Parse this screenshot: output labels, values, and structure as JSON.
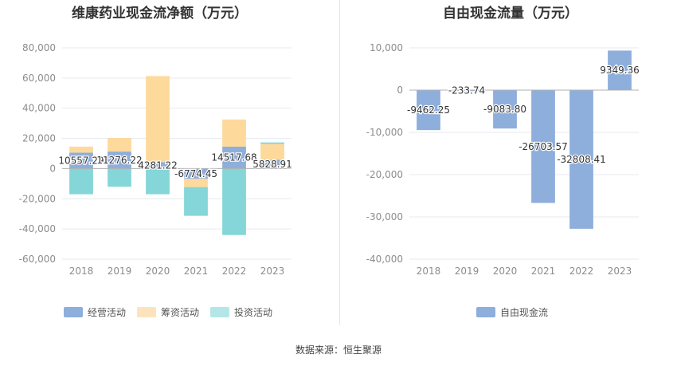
{
  "colors": {
    "operating": "#8eaedc",
    "financing": "#fdd99b",
    "investing": "#84d6d8",
    "fcf": "#8eaedc",
    "grid": "#e6e9ef",
    "tick_text": "#8c8c8c",
    "label_text": "#333333"
  },
  "left_chart": {
    "title": "维康药业现金流净额（万元）"
  },
  "right_chart": {
    "title": "自由现金流量（万元）"
  },
  "legend_left": [
    {
      "label": "经营活动",
      "color": "#8eaedc"
    },
    {
      "label": "筹资活动",
      "color": "#fde3bd"
    },
    {
      "label": "投资活动",
      "color": "#b4e6e7"
    }
  ],
  "legend_right": [
    {
      "label": "自由现金流",
      "color": "#8eaedc"
    }
  ],
  "source": "数据来源：恒生聚源",
  "chart_data": [
    {
      "type": "bar",
      "stacked": true,
      "title": "维康药业现金流净额（万元）",
      "categories": [
        "2018",
        "2019",
        "2020",
        "2021",
        "2022",
        "2023"
      ],
      "series": [
        {
          "name": "经营活动",
          "values": [
            10557.29,
            11276.22,
            4281.22,
            -6774.45,
            14517.68,
            5828.91
          ]
        },
        {
          "name": "筹资活动",
          "values": [
            4000,
            9000,
            57000,
            -5500,
            18000,
            10500
          ]
        },
        {
          "name": "投资活动",
          "values": [
            -17000,
            -12000,
            -17000,
            -19000,
            -44000,
            1000
          ]
        }
      ],
      "data_labels": [
        "10557.29",
        "11276.22",
        "4281.22",
        "-6774.45",
        "14517.68",
        "5828.91"
      ],
      "ylim": [
        -60000,
        80000
      ],
      "yticks": [
        80000,
        60000,
        40000,
        20000,
        0,
        -20000,
        -40000,
        -60000
      ],
      "ytick_labels": [
        "80,000",
        "60,000",
        "40,000",
        "20,000",
        "0",
        "-20,000",
        "-40,000",
        "-60,000"
      ],
      "grid": true,
      "legend": "bottom"
    },
    {
      "type": "bar",
      "title": "自由现金流量（万元）",
      "categories": [
        "2018",
        "2019",
        "2020",
        "2021",
        "2022",
        "2023"
      ],
      "series": [
        {
          "name": "自由现金流",
          "values": [
            -9462.25,
            -233.74,
            -9083.8,
            -26703.57,
            -32808.41,
            9349.36
          ]
        }
      ],
      "data_labels": [
        "-9462.25",
        "-233.74",
        "-9083.80",
        "-26703.57",
        "-32808.41",
        "9349.36"
      ],
      "ylim": [
        -40000,
        10000
      ],
      "yticks": [
        10000,
        0,
        -10000,
        -20000,
        -30000,
        -40000
      ],
      "ytick_labels": [
        "10,000",
        "0",
        "-10,000",
        "-20,000",
        "-30,000",
        "-40,000"
      ],
      "grid": true,
      "legend": "bottom"
    }
  ]
}
